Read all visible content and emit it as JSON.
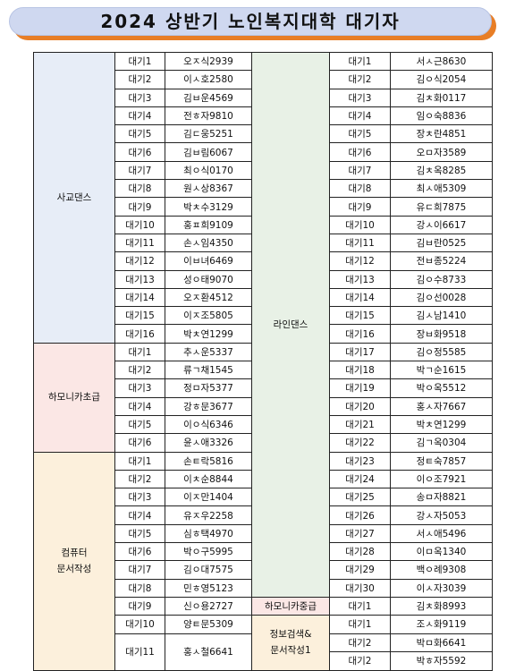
{
  "title": "2024 상반기 노인복지대학 대기자",
  "left": [
    {
      "label": "사교댄스",
      "rows": [
        [
          "대기1",
          "오ㅈ식2939"
        ],
        [
          "대기2",
          "이ㅅ호2580"
        ],
        [
          "대기3",
          "김ㅂ운4569"
        ],
        [
          "대기4",
          "전ㅎ자9810"
        ],
        [
          "대기5",
          "김ㄷ웅5251"
        ],
        [
          "대기6",
          "김ㅂ림6067"
        ],
        [
          "대기7",
          "최ㅇ식0170"
        ],
        [
          "대기8",
          "원ㅅ상8367"
        ],
        [
          "대기9",
          "박ㅊ수3129"
        ],
        [
          "대기10",
          "홍ㅍ희9109"
        ],
        [
          "대기11",
          "손ㅅ임4350"
        ],
        [
          "대기12",
          "이ㅂ녀6469"
        ],
        [
          "대기13",
          "성ㅇ태9070"
        ],
        [
          "대기14",
          "오ㅈ환4512"
        ],
        [
          "대기15",
          "이ㅈ조5805"
        ],
        [
          "대기16",
          "박ㅊ연1299"
        ]
      ]
    },
    {
      "label": "하모니카초급",
      "rows": [
        [
          "대기1",
          "추ㅅ운5337"
        ],
        [
          "대기2",
          "류ㄱ채1545"
        ],
        [
          "대기3",
          "정ㅁ자5377"
        ],
        [
          "대기4",
          "강ㅎ문3677"
        ],
        [
          "대기5",
          "이ㅇ식6346"
        ],
        [
          "대기6",
          "윤ㅅ애3326"
        ]
      ]
    },
    {
      "label": "컴퓨터\n문서작성",
      "rows": [
        [
          "대기1",
          "손ㅌ락5816"
        ],
        [
          "대기2",
          "이ㅊ순8844"
        ],
        [
          "대기3",
          "이ㅈ만1404"
        ],
        [
          "대기4",
          "유ㅈ우2258"
        ],
        [
          "대기5",
          "심ㅎ택4970"
        ],
        [
          "대기6",
          "박ㅇ구5995"
        ],
        [
          "대기7",
          "김ㅇ대7575"
        ],
        [
          "대기8",
          "민ㅎ영5123"
        ],
        [
          "대기9",
          "신ㅇ용2727"
        ],
        [
          "대기10",
          "양ㅌ문5309"
        ],
        [
          "대기11",
          "홍ㅅ철6641"
        ]
      ]
    }
  ],
  "right": [
    {
      "label": "라인댄스",
      "rows": [
        [
          "대기1",
          "서ㅅ근8630"
        ],
        [
          "대기2",
          "김ㅇ식2054"
        ],
        [
          "대기3",
          "김ㅊ화0117"
        ],
        [
          "대기4",
          "임ㅇ숙8836"
        ],
        [
          "대기5",
          "장ㅊ란4851"
        ],
        [
          "대기6",
          "오ㅁ자3589"
        ],
        [
          "대기7",
          "김ㅊ옥8285"
        ],
        [
          "대기8",
          "최ㅅ애5309"
        ],
        [
          "대기9",
          "유ㄷ희7875"
        ],
        [
          "대기10",
          "강ㅅ이6617"
        ],
        [
          "대기11",
          "김ㅂ란0525"
        ],
        [
          "대기12",
          "전ㅂ종5224"
        ],
        [
          "대기13",
          "김ㅇ수8733"
        ],
        [
          "대기14",
          "김ㅇ선0028"
        ],
        [
          "대기15",
          "김ㅅ남1410"
        ],
        [
          "대기16",
          "장ㅂ화9518"
        ],
        [
          "대기17",
          "김ㅇ정5585"
        ],
        [
          "대기18",
          "박ㄱ순1615"
        ],
        [
          "대기19",
          "박ㅇ옥5512"
        ],
        [
          "대기20",
          "홍ㅅ자7667"
        ],
        [
          "대기21",
          "박ㅊ연1299"
        ],
        [
          "대기22",
          "김ㄱ옥0304"
        ],
        [
          "대기23",
          "정ㅌ숙7857"
        ],
        [
          "대기24",
          "이ㅇ조7921"
        ],
        [
          "대기25",
          "송ㅁ자8821"
        ],
        [
          "대기26",
          "강ㅅ자5053"
        ],
        [
          "대기27",
          "서ㅅ애5496"
        ],
        [
          "대기28",
          "이ㅁ옥1340"
        ],
        [
          "대기29",
          "백ㅇ례9308"
        ],
        [
          "대기30",
          "이ㅅ자3039"
        ]
      ]
    },
    {
      "label": "하모니카중급",
      "rows": [
        [
          "대기1",
          "김ㅊ화8993"
        ]
      ]
    },
    {
      "label": "정보검색&\n문서작성1",
      "rows": [
        [
          "대기1",
          "조ㅅ화9119"
        ],
        [
          "대기2",
          "박ㅁ화6641"
        ],
        [
          "대기2",
          "박ㅎ자5592"
        ]
      ]
    }
  ]
}
